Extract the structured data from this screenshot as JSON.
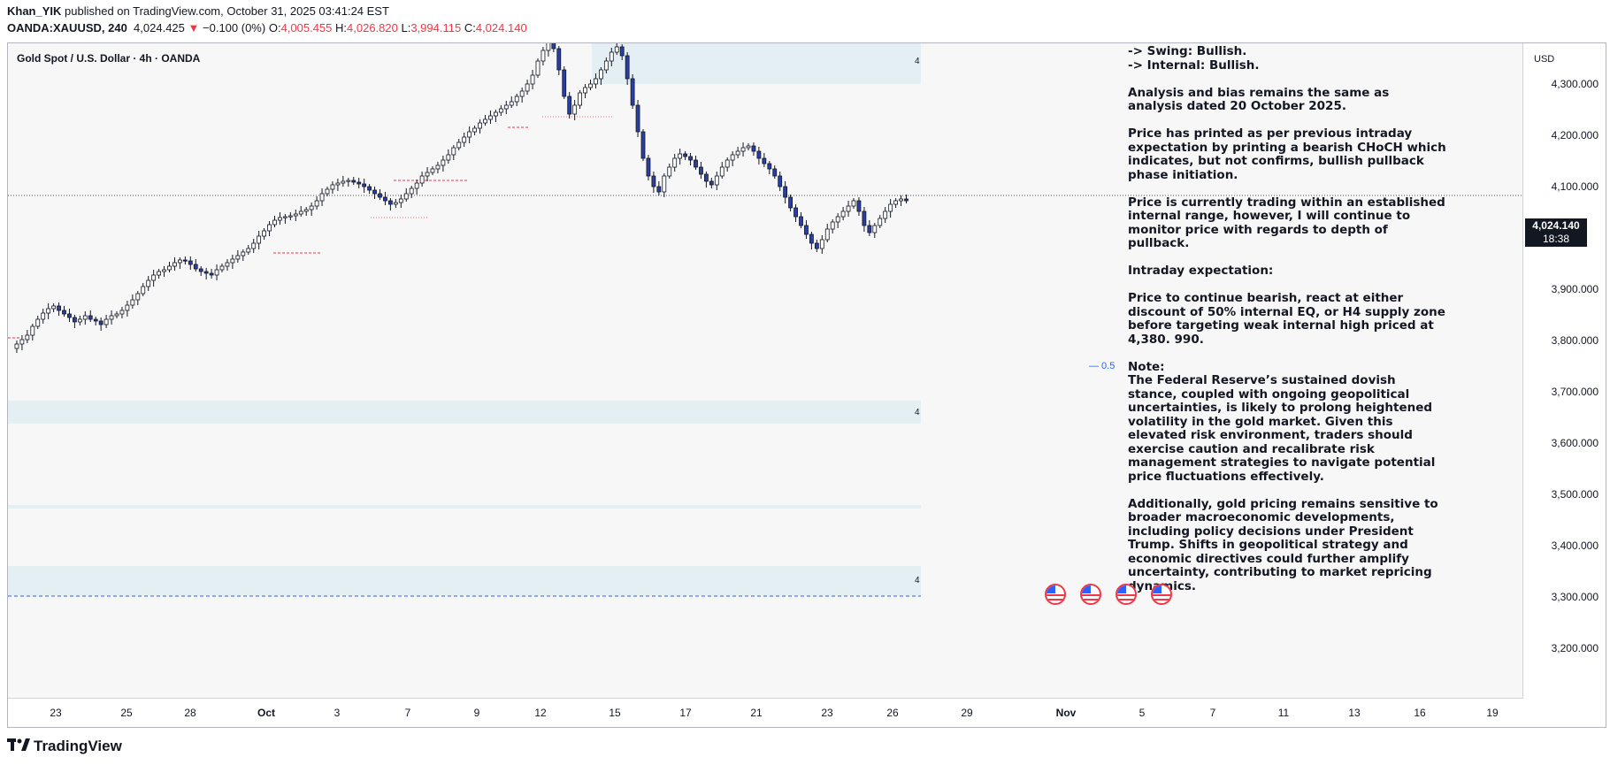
{
  "header": {
    "author": "Khan_YIK",
    "published_text": "published on TradingView.com, October 31, 2025 03:41:24 EST"
  },
  "ohlc": {
    "symbol": "OANDA:XAUUSD, 240",
    "last": "4,024.425",
    "change": "−0.100 (0%)",
    "open_label": "O:",
    "open": "4,005.455",
    "high_label": "H:",
    "high": "4,026.820",
    "low_label": "L:",
    "low": "3,994.115",
    "close_label": "C:",
    "close": "4,024.140"
  },
  "chart": {
    "series_title": "Gold Spot / U.S. Dollar · 4h · OANDA",
    "currency": "USD",
    "price_tag": "4,024.140",
    "countdown": "18:38",
    "fib_label": "— 0.5",
    "zone_label": "4",
    "colors": {
      "up": "#ffffff",
      "down": "#2a3fa0",
      "wick": "#131722",
      "zone": "#e3eff3",
      "red": "#f23645",
      "blue": "#2962ff"
    }
  },
  "price_axis": [
    "4,300.000",
    "4,200.000",
    "4,100.000",
    "3,900.000",
    "3,800.000",
    "3,700.000",
    "3,600.000",
    "3,500.000",
    "3,400.000",
    "3,300.000",
    "3,200.000"
  ],
  "time_axis": [
    "23",
    "25",
    "28",
    "Oct",
    "3",
    "7",
    "9",
    "12",
    "15",
    "17",
    "21",
    "23",
    "26",
    "29",
    "Nov",
    "5",
    "7",
    "11",
    "13",
    "16",
    "19"
  ],
  "note": {
    "lines": [
      "-> Swing:  Bullish.",
      "-> Internal:  Bullish."
    ],
    "paragraphs": [
      "Analysis and bias remains the same as analysis dated 20 October 2025.",
      "Price has printed as per previous intraday expectation by printing a bearish CHoCH which indicates, but not confirms, bullish pullback phase initiation.",
      "Price is currently trading within an established internal range, however, I will continue to monitor price with regards to depth of pullback.",
      "Intraday expectation:",
      "Price to continue bearish, react at either discount of 50% internal EQ, or H4 supply zone before targeting weak internal high priced at 4,380. 990.",
      "Note:"
    ],
    "note_body": "The Federal Reserve’s sustained dovish stance, coupled with ongoing geopolitical uncertainties, is likely to prolong heightened volatility in the gold market. Given this elevated risk environment, traders should exercise caution and recalibrate risk management strategies to navigate potential price fluctuations effectively.",
    "closing": "Additionally, gold pricing remains sensitive to broader macroeconomic developments, including policy decisions under President Trump. Shifts in geopolitical strategy and economic directives could further amplify uncertainty, contributing to market repricing dynamics."
  },
  "footer": {
    "brand": "TradingView",
    "logo_icon": "tradingview-logo-icon"
  }
}
